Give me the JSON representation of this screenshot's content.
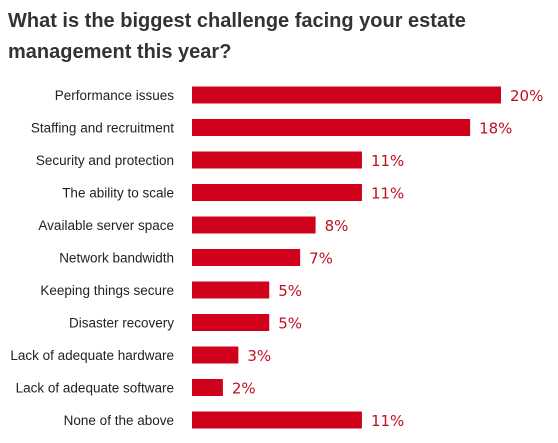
{
  "chart_data": {
    "type": "bar",
    "orientation": "horizontal",
    "title": "What is the biggest challenge facing your estate management this year?",
    "categories": [
      "Performance issues",
      "Staffing and recruitment",
      "Security and protection",
      "The ability to scale",
      "Available server space",
      "Network bandwidth",
      "Keeping things secure",
      "Disaster recovery",
      "Lack of adequate hardware",
      "Lack of adequate software",
      "None of the above"
    ],
    "values": [
      20,
      18,
      11,
      11,
      8,
      7,
      5,
      5,
      3,
      2,
      11
    ],
    "value_labels": [
      "20%",
      "18%",
      "11%",
      "11%",
      "8%",
      "7%",
      "5%",
      "5%",
      "3%",
      "2%",
      "11%"
    ],
    "xlim": [
      0,
      20
    ],
    "grid": false,
    "legend": "none",
    "bar_color": "#d0021b",
    "label_color": "#c0101d"
  }
}
